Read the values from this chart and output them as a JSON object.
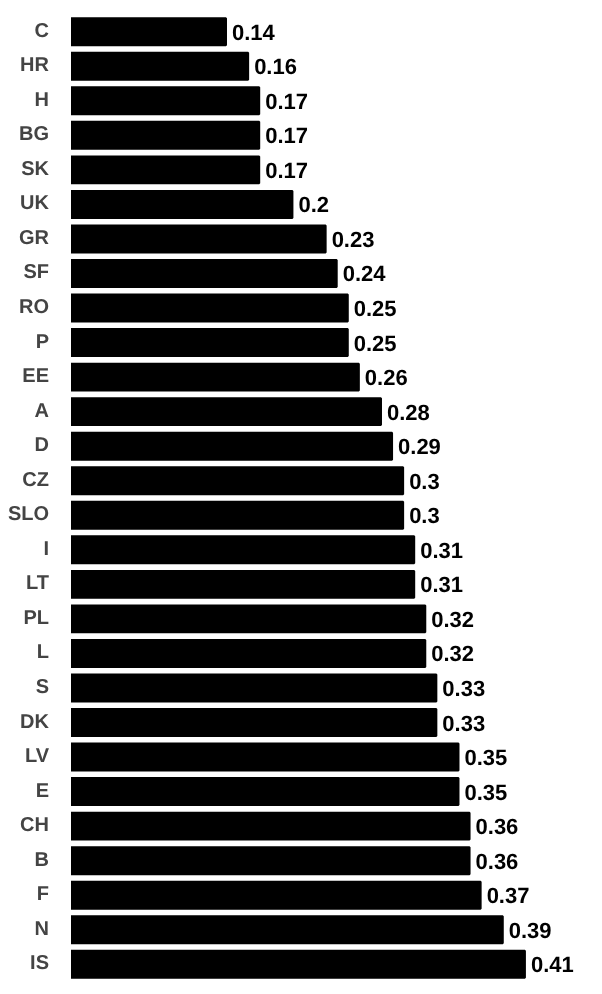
{
  "chart_data": {
    "type": "bar",
    "orientation": "horizontal",
    "categories": [
      "C",
      "HR",
      "H",
      "BG",
      "SK",
      "UK",
      "GR",
      "SF",
      "RO",
      "P",
      "EE",
      "A",
      "D",
      "CZ",
      "SLO",
      "I",
      "LT",
      "PL",
      "L",
      "S",
      "DK",
      "LV",
      "E",
      "CH",
      "B",
      "F",
      "N",
      "IS"
    ],
    "values": [
      0.14,
      0.16,
      0.17,
      0.17,
      0.17,
      0.2,
      0.23,
      0.24,
      0.25,
      0.25,
      0.26,
      0.28,
      0.29,
      0.3,
      0.3,
      0.31,
      0.31,
      0.32,
      0.32,
      0.33,
      0.33,
      0.35,
      0.35,
      0.36,
      0.36,
      0.37,
      0.39,
      0.41
    ],
    "color": "#000000",
    "data_labels": true,
    "tick_labels": "y"
  }
}
